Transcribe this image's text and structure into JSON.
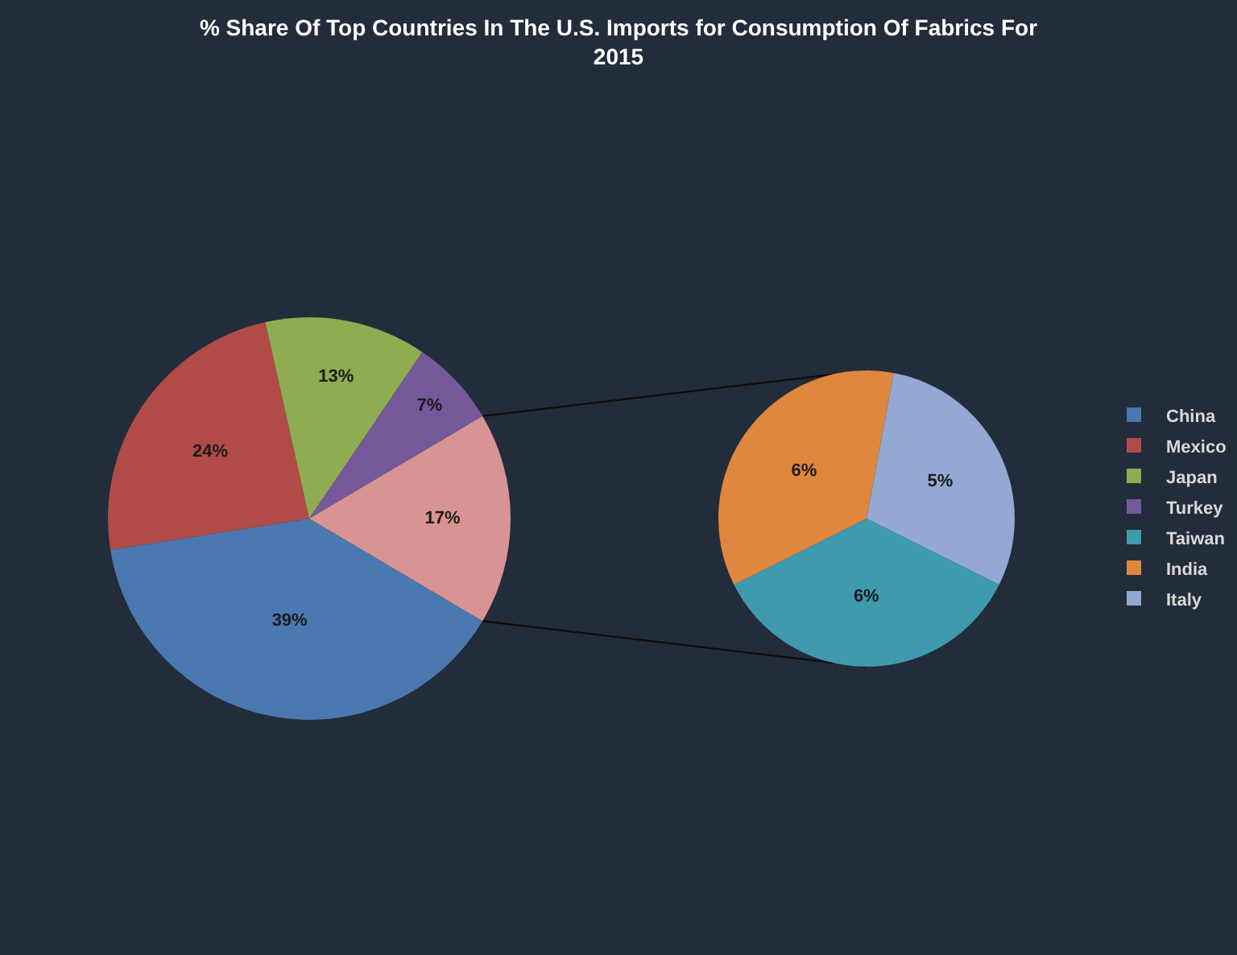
{
  "chart_data": [
    {
      "type": "pie",
      "title": "% Share Of Top Countries In The U.S. Imports for Consumption Of Fabrics For 2015",
      "categories": [
        "China",
        "Mexico",
        "Japan",
        "Turkey",
        null
      ],
      "values": [
        39,
        24,
        13,
        7,
        17
      ],
      "colors": [
        "#4a78b0",
        "#b04b48",
        "#8fac50",
        "#75599a",
        "#d89492"
      ],
      "value_labels": [
        "39%",
        "24%",
        "13%",
        "7%",
        "17%"
      ],
      "legend": "right"
    },
    {
      "type": "pie",
      "categories": [
        "Taiwan",
        "India",
        "Italy"
      ],
      "values": [
        6,
        6,
        5
      ],
      "colors": [
        "#3f9aae",
        "#de873f",
        "#93a8d3"
      ],
      "value_labels": [
        "6%",
        "6%",
        "5%"
      ],
      "legend": "right"
    }
  ]
}
